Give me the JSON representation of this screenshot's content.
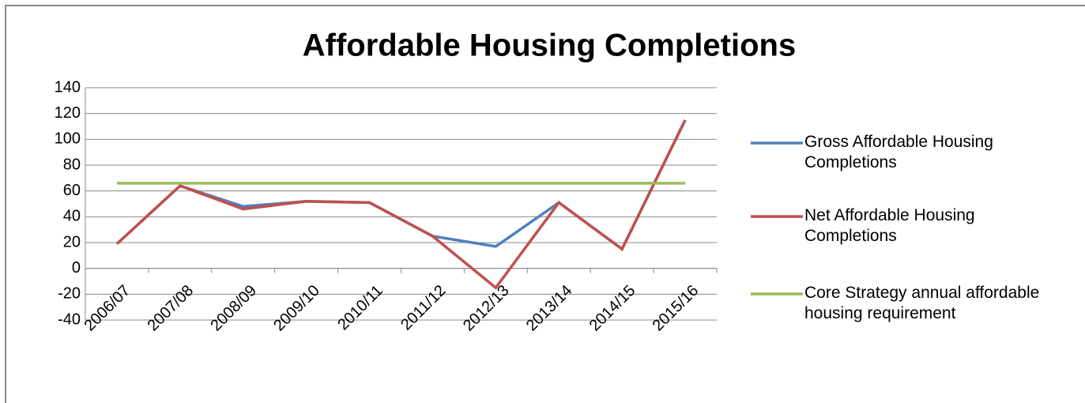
{
  "chart_data": {
    "type": "line",
    "title": "Affordable Housing Completions",
    "categories": [
      "2006/07",
      "2007/08",
      "2008/09",
      "2009/10",
      "2010/11",
      "2011/12",
      "2012/13",
      "2013/14",
      "2014/15",
      "2015/16"
    ],
    "series": [
      {
        "name": "Gross Affordable Housing Completions",
        "color": "#4f81bd",
        "values": [
          19,
          64,
          48,
          52,
          51,
          25,
          17,
          51,
          15,
          115
        ]
      },
      {
        "name": "Net Affordable Housing Completions",
        "color": "#c0504d",
        "values": [
          19,
          64,
          46,
          52,
          51,
          25,
          -15,
          51,
          15,
          115
        ]
      },
      {
        "name": "Core Strategy annual affordable housing requirement",
        "color": "#9bbb59",
        "values": [
          66,
          66,
          66,
          66,
          66,
          66,
          66,
          66,
          66,
          66
        ]
      }
    ],
    "ylim": [
      -40,
      140
    ],
    "yticks": [
      -40,
      -20,
      0,
      20,
      40,
      60,
      80,
      100,
      120,
      140
    ],
    "grid": true,
    "legend": "right"
  }
}
